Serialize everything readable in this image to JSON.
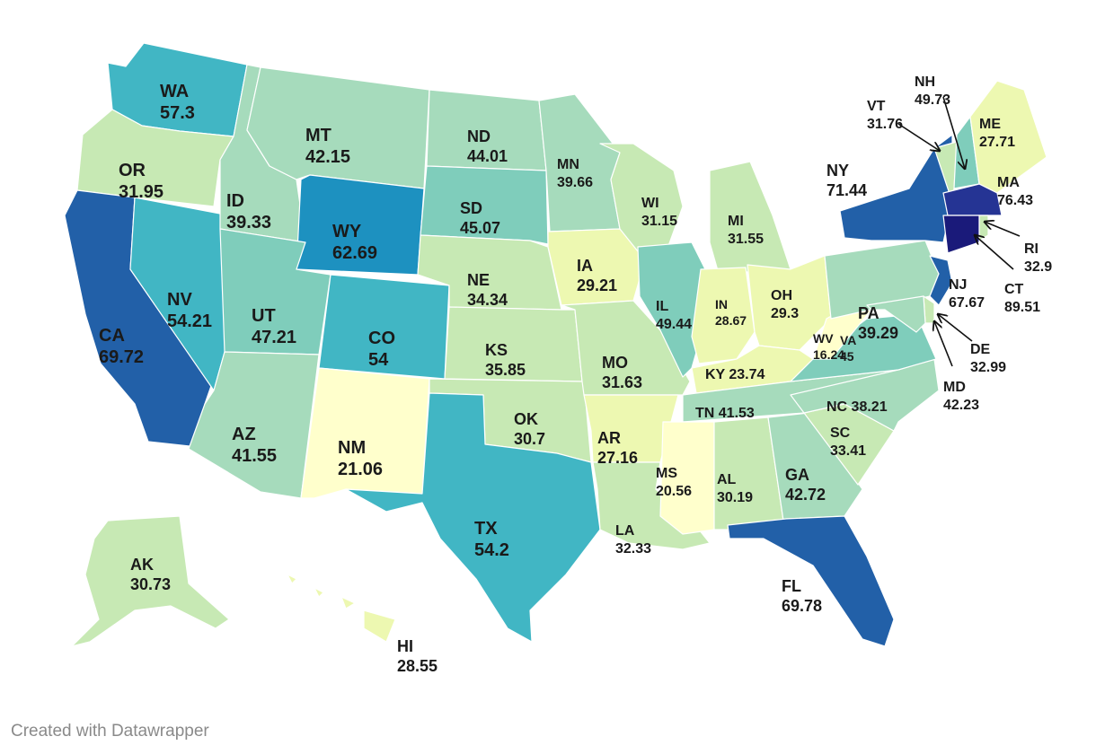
{
  "credit": "Created with Datawrapper",
  "color_scale": [
    "#ffffcc",
    "#edf8b1",
    "#c7e9b4",
    "#a6dbbc",
    "#7fcdbb",
    "#41b6c4",
    "#1d91c0",
    "#2260a8",
    "#253494",
    "#1a1a7a"
  ],
  "states": [
    {
      "code": "WA",
      "value": "57.3"
    },
    {
      "code": "OR",
      "value": "31.95"
    },
    {
      "code": "CA",
      "value": "69.72"
    },
    {
      "code": "NV",
      "value": "54.21"
    },
    {
      "code": "ID",
      "value": "39.33"
    },
    {
      "code": "MT",
      "value": "42.15"
    },
    {
      "code": "WY",
      "value": "62.69"
    },
    {
      "code": "UT",
      "value": "47.21"
    },
    {
      "code": "AZ",
      "value": "41.55"
    },
    {
      "code": "CO",
      "value": "54"
    },
    {
      "code": "NM",
      "value": "21.06"
    },
    {
      "code": "ND",
      "value": "44.01"
    },
    {
      "code": "SD",
      "value": "45.07"
    },
    {
      "code": "NE",
      "value": "34.34"
    },
    {
      "code": "KS",
      "value": "35.85"
    },
    {
      "code": "OK",
      "value": "30.7"
    },
    {
      "code": "TX",
      "value": "54.2"
    },
    {
      "code": "MN",
      "value": "39.66"
    },
    {
      "code": "IA",
      "value": "29.21"
    },
    {
      "code": "MO",
      "value": "31.63"
    },
    {
      "code": "AR",
      "value": "27.16"
    },
    {
      "code": "LA",
      "value": "32.33"
    },
    {
      "code": "WI",
      "value": "31.15"
    },
    {
      "code": "IL",
      "value": "49.44"
    },
    {
      "code": "MI",
      "value": "31.55"
    },
    {
      "code": "IN",
      "value": "28.67"
    },
    {
      "code": "OH",
      "value": "29.3"
    },
    {
      "code": "KY",
      "value": "23.74"
    },
    {
      "code": "TN",
      "value": "41.53"
    },
    {
      "code": "MS",
      "value": "20.56"
    },
    {
      "code": "AL",
      "value": "30.19"
    },
    {
      "code": "GA",
      "value": "42.72"
    },
    {
      "code": "FL",
      "value": "69.78"
    },
    {
      "code": "SC",
      "value": "33.41"
    },
    {
      "code": "NC",
      "value": "38.21"
    },
    {
      "code": "VA",
      "value": "45"
    },
    {
      "code": "WV",
      "value": "16.24"
    },
    {
      "code": "PA",
      "value": "39.29"
    },
    {
      "code": "NY",
      "value": "71.44"
    },
    {
      "code": "VT",
      "value": "31.76"
    },
    {
      "code": "NH",
      "value": "49.73"
    },
    {
      "code": "ME",
      "value": "27.71"
    },
    {
      "code": "MA",
      "value": "76.43"
    },
    {
      "code": "RI",
      "value": "32.9"
    },
    {
      "code": "CT",
      "value": "89.51"
    },
    {
      "code": "NJ",
      "value": "67.67"
    },
    {
      "code": "DE",
      "value": "32.99"
    },
    {
      "code": "MD",
      "value": "42.23"
    },
    {
      "code": "AK",
      "value": "30.73"
    },
    {
      "code": "HI",
      "value": "28.55"
    }
  ]
}
